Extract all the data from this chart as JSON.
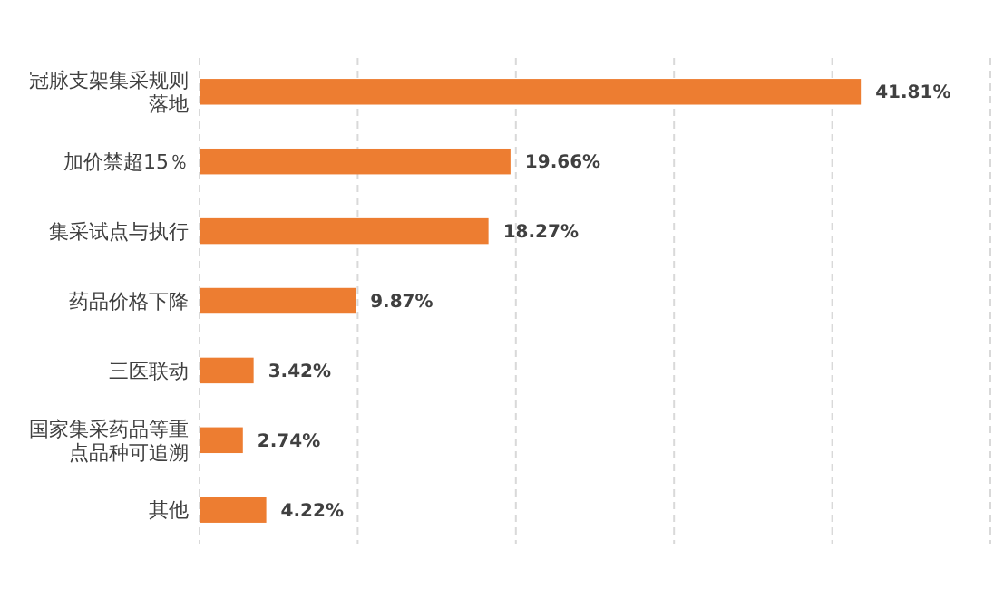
{
  "chart_data": {
    "type": "bar",
    "orientation": "horizontal",
    "categories": [
      "冠脉支架集采规则落地",
      "加价禁超15％",
      "集采试点与执行",
      "药品价格下降",
      "三医联动",
      "国家集采药品等重点品种可追溯",
      "其他"
    ],
    "values": [
      41.81,
      19.66,
      18.27,
      9.87,
      3.42,
      2.74,
      4.22
    ],
    "value_labels": [
      "41.81%",
      "19.66%",
      "18.27%",
      "9.87%",
      "3.42%",
      "2.74%",
      "4.22%"
    ],
    "color": "#ed7d31",
    "xlim": [
      0,
      50
    ],
    "xticks": [
      {
        "value": 0,
        "label": null
      },
      {
        "value": 10,
        "label": null
      },
      {
        "value": 20,
        "label": null
      },
      {
        "value": 30,
        "label": null
      },
      {
        "value": 40,
        "label": null
      },
      {
        "value": 50,
        "label": null
      }
    ],
    "grid": "x",
    "tick_labels": "y"
  }
}
